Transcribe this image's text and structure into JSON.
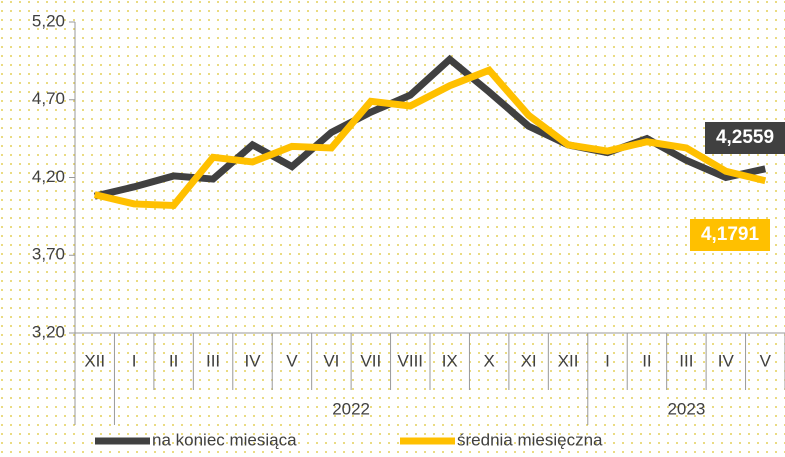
{
  "chart_data": {
    "type": "line",
    "categories": [
      "XII",
      "I",
      "II",
      "III",
      "IV",
      "V",
      "VI",
      "VII",
      "VIII",
      "IX",
      "X",
      "XI",
      "XII",
      "I",
      "II",
      "III",
      "IV",
      "V"
    ],
    "groups": [
      {
        "label": "2022",
        "start": 1,
        "end": 12
      },
      {
        "label": "2023",
        "start": 13,
        "end": 17
      }
    ],
    "series": [
      {
        "name": "na koniec miesiąca",
        "color": "#404040",
        "values": [
          4.08,
          4.14,
          4.21,
          4.19,
          4.41,
          4.27,
          4.49,
          4.62,
          4.73,
          4.96,
          4.75,
          4.53,
          4.41,
          4.36,
          4.45,
          4.31,
          4.2,
          4.2559
        ],
        "value_labels": [
          null,
          null,
          null,
          null,
          null,
          null,
          null,
          null,
          null,
          null,
          null,
          null,
          null,
          null,
          null,
          null,
          null,
          "4,2559"
        ]
      },
      {
        "name": "średnia miesięczna",
        "color": "#FFC000",
        "values": [
          4.09,
          4.03,
          4.02,
          4.33,
          4.3,
          4.4,
          4.39,
          4.69,
          4.66,
          4.79,
          4.89,
          4.6,
          4.41,
          4.37,
          4.43,
          4.39,
          4.24,
          4.1791
        ],
        "value_labels": [
          null,
          null,
          null,
          null,
          null,
          null,
          null,
          null,
          null,
          null,
          null,
          null,
          null,
          null,
          null,
          null,
          null,
          "4,1791"
        ]
      }
    ],
    "ylim": [
      3.2,
      5.2
    ],
    "yticks": [
      {
        "value": 3.2,
        "label": "3,20"
      },
      {
        "value": 3.7,
        "label": "3,70"
      },
      {
        "value": 4.2,
        "label": "4,20"
      },
      {
        "value": 4.7,
        "label": "4,70"
      },
      {
        "value": 5.2,
        "label": "5,20"
      }
    ],
    "legend": "bottom"
  }
}
